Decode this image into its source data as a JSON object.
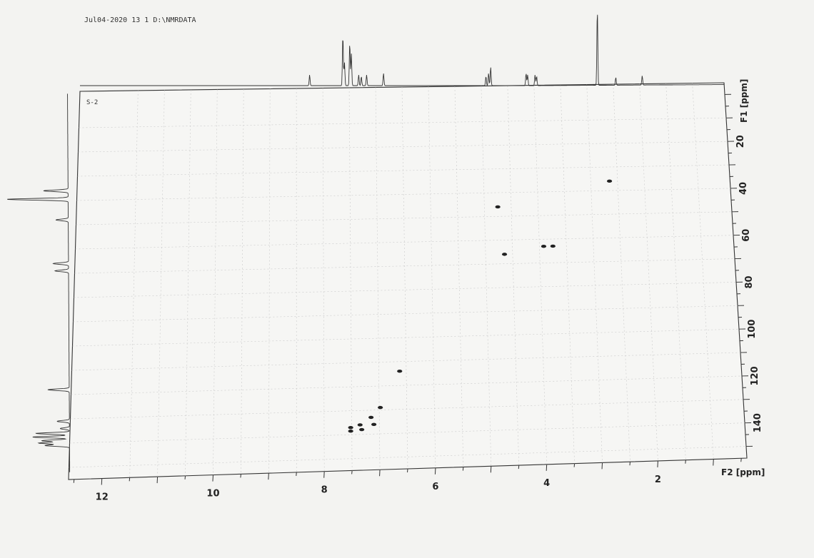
{
  "header": {
    "text": "Jul04-2020  13  1  D:\\NMRDATA"
  },
  "chart_data": {
    "type": "scatter",
    "title": "",
    "sample_label": "S-2",
    "xlabel": "F2 [ppm]",
    "ylabel": "F1 [ppm]",
    "xlim": [
      12.6,
      0.4
    ],
    "ylim": [
      -5,
      155
    ],
    "x_ticks": [
      12,
      10,
      8,
      6,
      4,
      2
    ],
    "y_ticks": [
      20,
      40,
      60,
      80,
      100,
      120,
      140
    ],
    "grid": true,
    "points": [
      {
        "x": 2.65,
        "y": 36
      },
      {
        "x": 4.75,
        "y": 46
      },
      {
        "x": 3.92,
        "y": 63
      },
      {
        "x": 3.75,
        "y": 63
      },
      {
        "x": 4.65,
        "y": 66
      },
      {
        "x": 6.62,
        "y": 114
      },
      {
        "x": 6.98,
        "y": 129
      },
      {
        "x": 7.15,
        "y": 133
      },
      {
        "x": 7.1,
        "y": 136
      },
      {
        "x": 7.35,
        "y": 136
      },
      {
        "x": 7.32,
        "y": 138
      },
      {
        "x": 7.52,
        "y": 137
      },
      {
        "x": 7.52,
        "y": 138.5
      }
    ],
    "f2_projection_peaks": [
      {
        "x": 8.25,
        "h": 0.14
      },
      {
        "x": 7.62,
        "h": 0.66
      },
      {
        "x": 7.59,
        "h": 0.3
      },
      {
        "x": 7.49,
        "h": 0.56
      },
      {
        "x": 7.46,
        "h": 0.42
      },
      {
        "x": 7.32,
        "h": 0.14
      },
      {
        "x": 7.27,
        "h": 0.12
      },
      {
        "x": 7.17,
        "h": 0.14
      },
      {
        "x": 6.85,
        "h": 0.16
      },
      {
        "x": 4.91,
        "h": 0.12
      },
      {
        "x": 4.86,
        "h": 0.16
      },
      {
        "x": 4.82,
        "h": 0.24
      },
      {
        "x": 4.15,
        "h": 0.16
      },
      {
        "x": 4.12,
        "h": 0.14
      },
      {
        "x": 3.98,
        "h": 0.14
      },
      {
        "x": 3.95,
        "h": 0.12
      },
      {
        "x": 2.8,
        "h": 1.0
      },
      {
        "x": 2.45,
        "h": 0.1
      },
      {
        "x": 1.95,
        "h": 0.12
      }
    ],
    "f1_projection_peaks": [
      {
        "y": 36,
        "h": 0.4
      },
      {
        "y": 39.5,
        "h": 1.0
      },
      {
        "y": 48,
        "h": 0.2
      },
      {
        "y": 66,
        "h": 0.25
      },
      {
        "y": 69,
        "h": 0.22
      },
      {
        "y": 118,
        "h": 0.35
      },
      {
        "y": 131,
        "h": 0.2
      },
      {
        "y": 134,
        "h": 0.15
      },
      {
        "y": 136,
        "h": 0.55
      },
      {
        "y": 137.5,
        "h": 0.6
      },
      {
        "y": 139,
        "h": 0.45
      },
      {
        "y": 140,
        "h": 0.5
      },
      {
        "y": 141,
        "h": 0.4
      }
    ]
  }
}
